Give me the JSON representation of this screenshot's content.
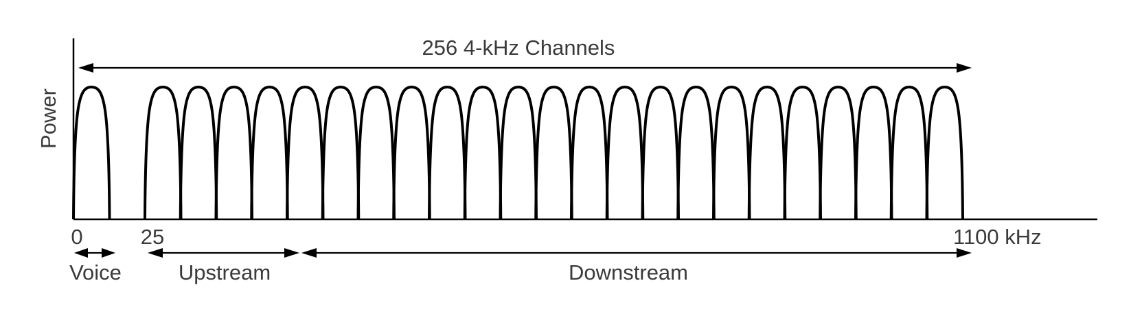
{
  "title": "256 4-kHz Channels",
  "y_axis_label": "Power",
  "x_ticks": [
    {
      "label": "0"
    },
    {
      "label": "25"
    },
    {
      "label": "1100 kHz"
    }
  ],
  "bands": [
    {
      "label": "Voice"
    },
    {
      "label": "Upstream"
    },
    {
      "label": "Downstream"
    }
  ]
}
